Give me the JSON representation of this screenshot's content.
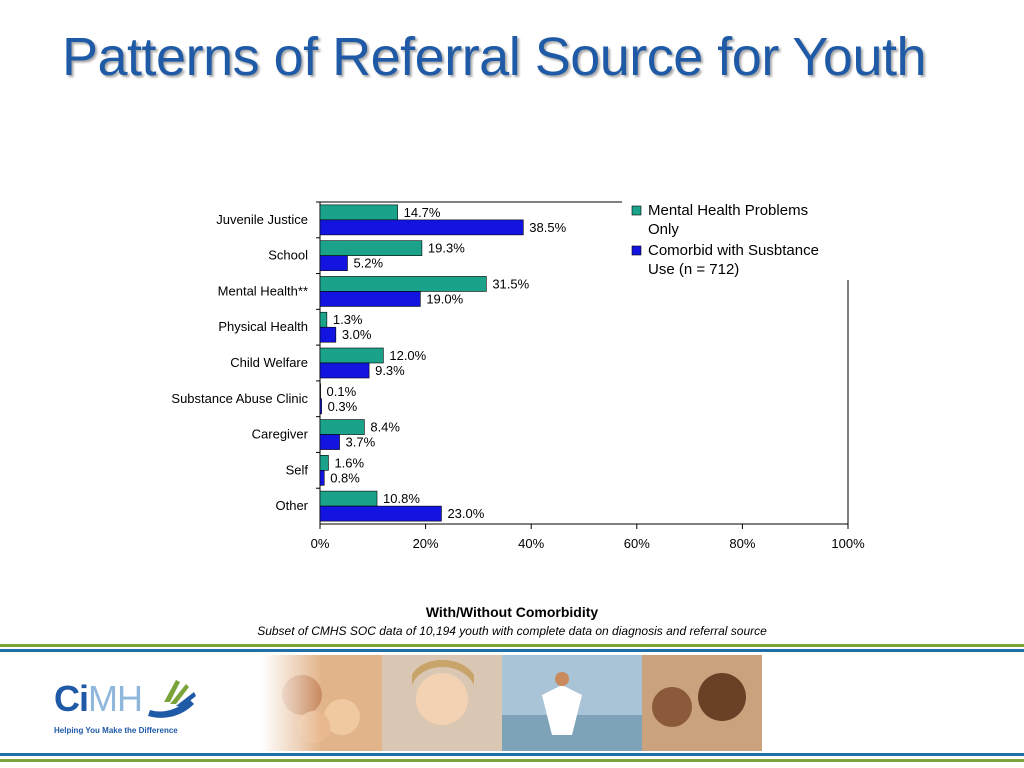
{
  "page": {
    "title": "Patterns of Referral Source for Youth",
    "caption_title": "With/Without Comorbidity",
    "caption_subtitle": "Subset of CMHS SOC data of 10,194 youth with complete data on diagnosis and referral source"
  },
  "logo": {
    "text_ci": "Ci",
    "text_mh": "MH",
    "tagline": "Helping You Make the Difference"
  },
  "colors": {
    "title": "#1f5aa6",
    "series_mental_health": "#1aa38a",
    "series_comorbid": "#1414e0",
    "rule_green": "#7aa33a",
    "rule_blue": "#1e6fa8"
  },
  "chart_data": {
    "type": "bar",
    "orientation": "horizontal",
    "categories": [
      "Juvenile Justice",
      "School",
      "Mental Health**",
      "Physical Health",
      "Child Welfare",
      "Substance Abuse Clinic",
      "Caregiver",
      "Self",
      "Other"
    ],
    "series": [
      {
        "name": "Mental Health Problems Only",
        "color": "#1aa38a",
        "values": [
          14.7,
          19.3,
          31.5,
          1.3,
          12.0,
          0.1,
          8.4,
          1.6,
          10.8
        ],
        "labels": [
          "14.7%",
          "19.3%",
          "31.5%",
          "1.3%",
          "12.0%",
          "0.1%",
          "8.4%",
          "1.6%",
          "10.8%"
        ]
      },
      {
        "name": "Comorbid with Susbtance Use (n = 712)",
        "color": "#1414e0",
        "values": [
          38.5,
          5.2,
          19.0,
          3.0,
          9.3,
          0.3,
          3.7,
          0.8,
          23.0
        ],
        "labels": [
          "38.5%",
          "5.2%",
          "19.0%",
          "3.0%",
          "9.3%",
          "0.3%",
          "3.7%",
          "0.8%",
          "23.0%"
        ]
      }
    ],
    "legend_lines": [
      [
        "Mental Health Problems",
        "Only"
      ],
      [
        "Comorbid with Susbtance",
        "Use (n = 712)"
      ]
    ],
    "xlim": [
      0,
      100
    ],
    "xticks": [
      0,
      20,
      40,
      60,
      80,
      100
    ],
    "xtick_labels": [
      "0%",
      "20%",
      "40%",
      "60%",
      "80%",
      "100%"
    ],
    "legend_position": "top-right",
    "grid": false
  }
}
